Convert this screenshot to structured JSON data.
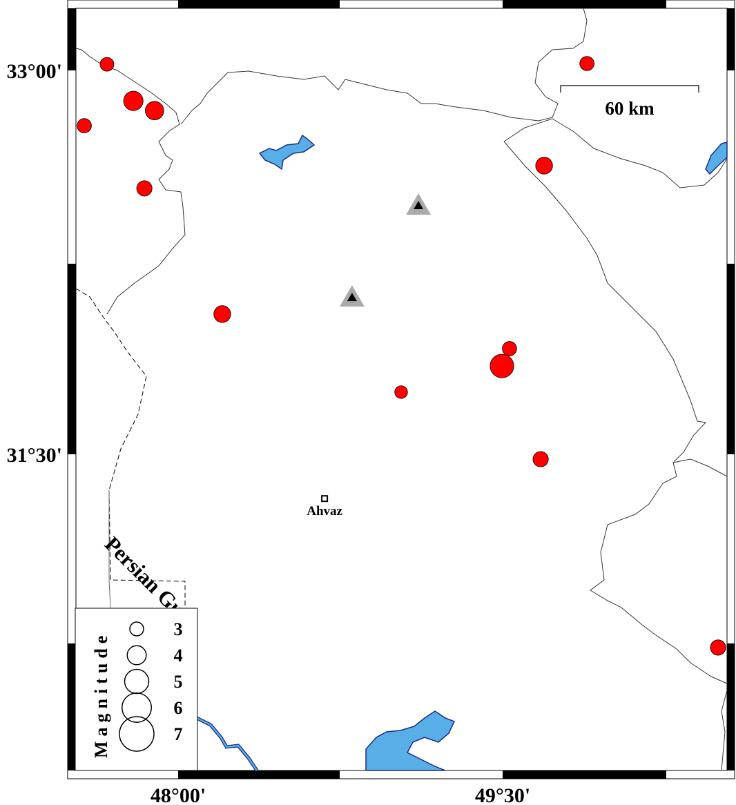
{
  "map": {
    "axes": {
      "lat_labels": [
        {
          "value": 33.0,
          "text": "33°00'"
        },
        {
          "value": 31.5,
          "text": "31°30'"
        }
      ],
      "lon_labels": [
        {
          "value": 48.0,
          "text": "48°00'"
        },
        {
          "value": 49.5,
          "text": "49°30'"
        }
      ]
    },
    "scale_bar": {
      "label": "60 km",
      "length_km": 60
    },
    "sea_label": "Persian Gulf",
    "city": {
      "name": "Ahvaz",
      "lon": 48.677,
      "lat": 31.327
    },
    "stations": [
      {
        "lon": 49.111,
        "lat": 32.474
      },
      {
        "lon": 48.804,
        "lat": 32.115
      }
    ],
    "earthquakes": [
      {
        "lon": 47.671,
        "lat": 33.024,
        "mag": 3.0
      },
      {
        "lon": 47.793,
        "lat": 32.881,
        "mag": 4.1
      },
      {
        "lon": 47.891,
        "lat": 32.843,
        "mag": 3.9
      },
      {
        "lon": 47.566,
        "lat": 32.784,
        "mag": 3.1
      },
      {
        "lon": 47.844,
        "lat": 32.539,
        "mag": 3.3
      },
      {
        "lon": 48.204,
        "lat": 32.048,
        "mag": 3.6
      },
      {
        "lon": 49.89,
        "lat": 33.027,
        "mag": 3.1
      },
      {
        "lon": 49.692,
        "lat": 32.628,
        "mag": 3.6
      },
      {
        "lon": 49.532,
        "lat": 31.913,
        "mag": 3.1
      },
      {
        "lon": 49.497,
        "lat": 31.845,
        "mag": 4.9
      },
      {
        "lon": 49.031,
        "lat": 31.743,
        "mag": 2.8
      },
      {
        "lon": 49.676,
        "lat": 31.481,
        "mag": 3.3
      },
      {
        "lon": 50.496,
        "lat": 30.745,
        "mag": 3.3
      }
    ],
    "legend": {
      "title": "Magnitude",
      "entries": [
        3,
        4,
        5,
        6,
        7
      ]
    },
    "colors": {
      "earthquake": "#ff0000",
      "water": "#58aee6",
      "water_outline": "#1a2a8a",
      "station_outer": "#aaaaaa",
      "station_inner": "#000000"
    }
  }
}
